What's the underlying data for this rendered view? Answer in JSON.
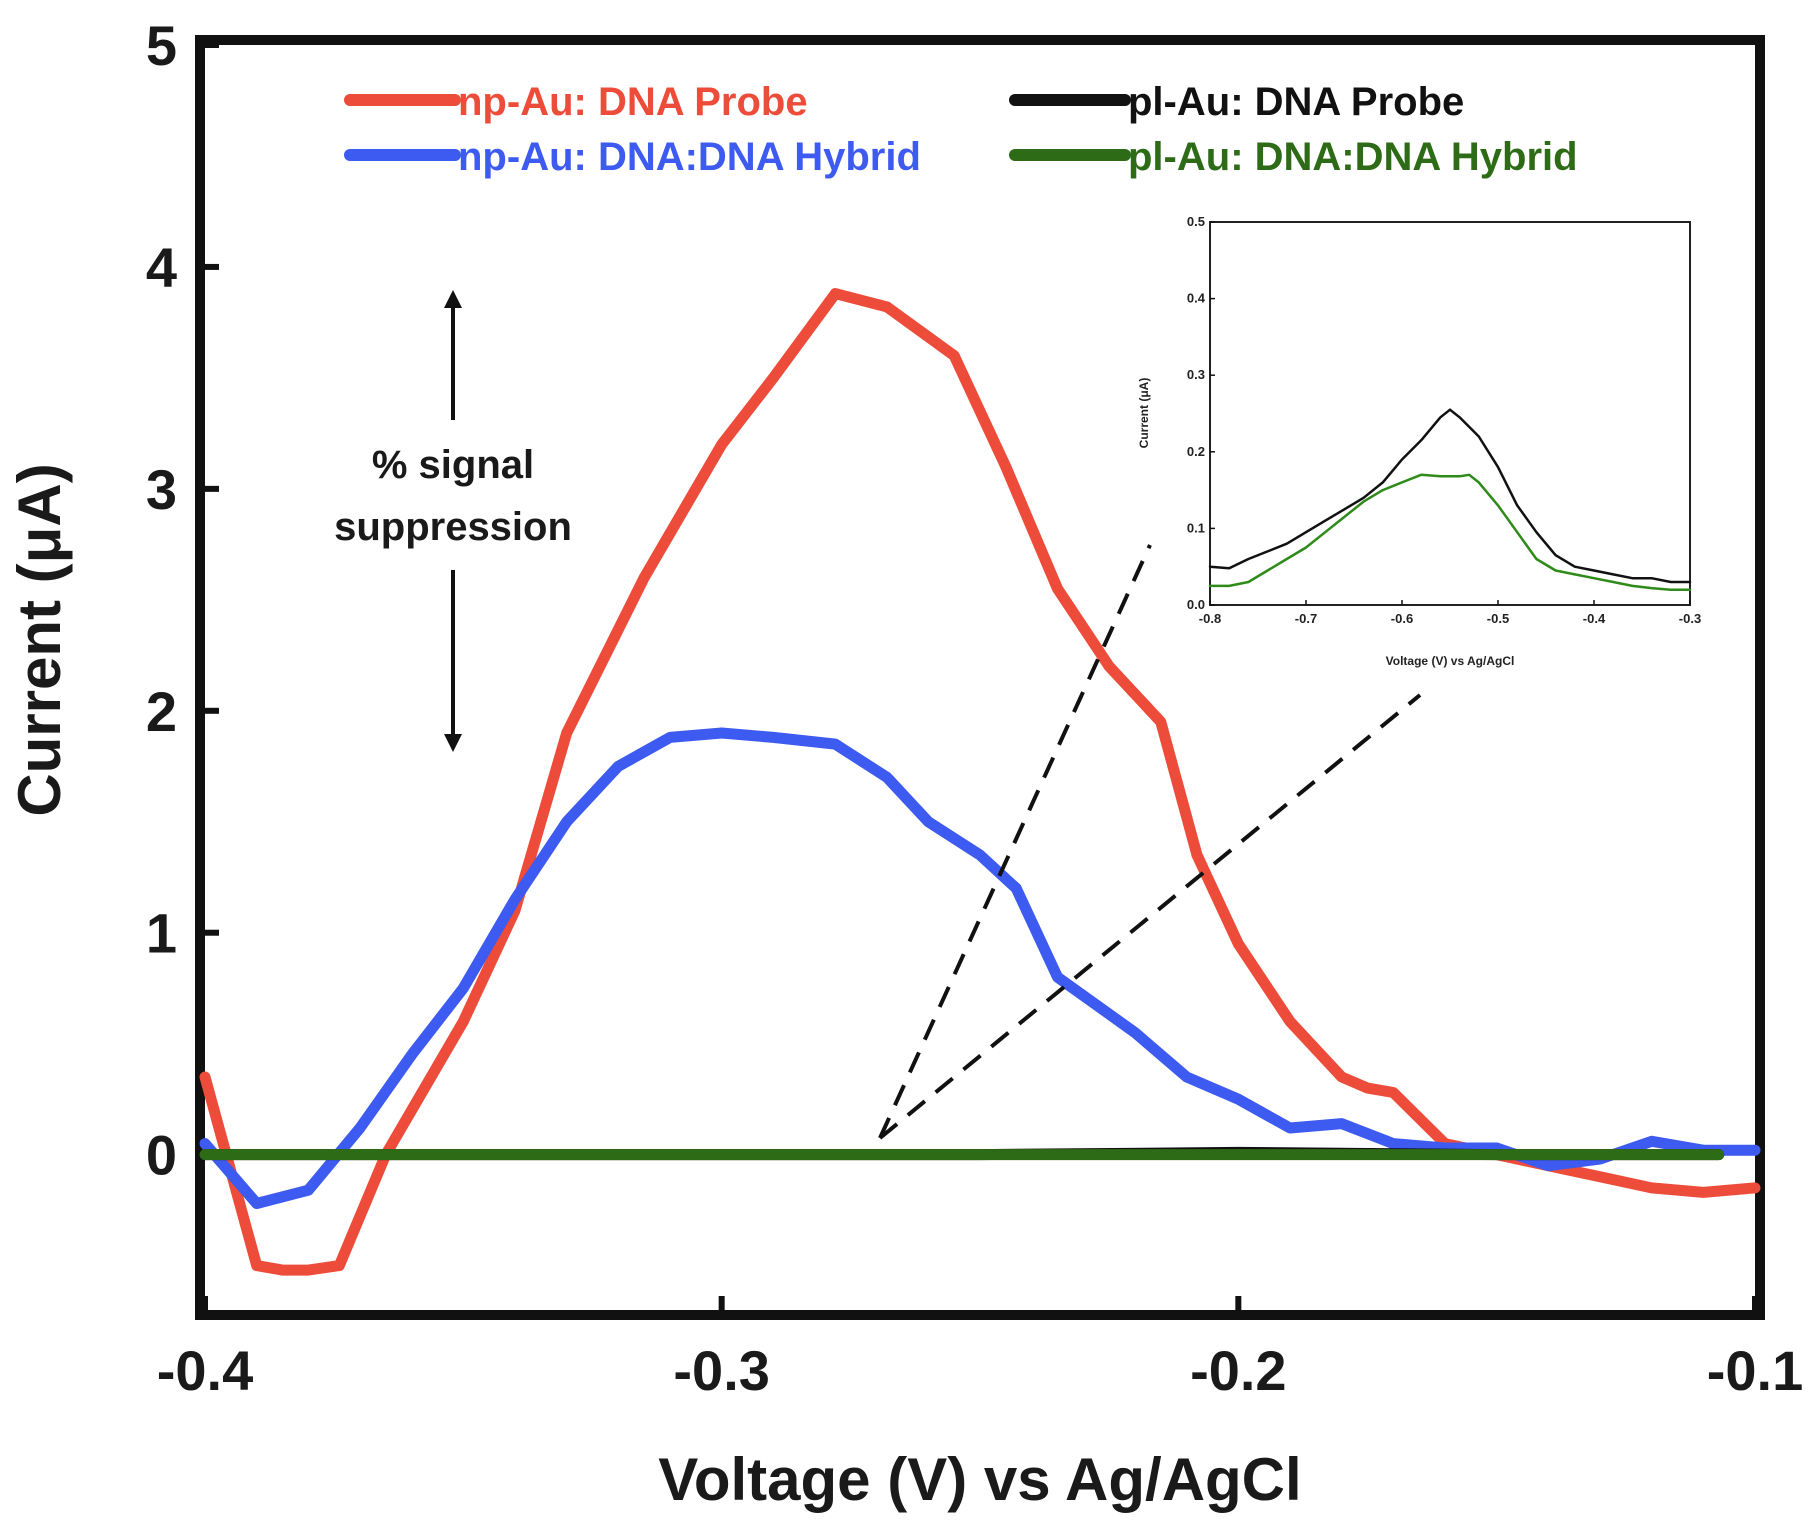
{
  "chart_data": [
    {
      "type": "line",
      "title": "",
      "xlabel": "Voltage (V) vs Ag/AgCl",
      "ylabel": "Current (μA)",
      "xlim": [
        -0.4,
        -0.1
      ],
      "ylim": [
        -0.7,
        5
      ],
      "x_ticks": [
        -0.4,
        -0.3,
        -0.2,
        -0.1
      ],
      "x_tick_labels": [
        "-0.4",
        "-0.3",
        "-0.2",
        "-0.1"
      ],
      "y_ticks": [
        0,
        1,
        2,
        3,
        4,
        5
      ],
      "y_tick_labels": [
        "0",
        "1",
        "2",
        "3",
        "4",
        "5"
      ],
      "grid": false,
      "legend_position": "top",
      "series": [
        {
          "name": "np-Au: DNA Probe",
          "color": "#ee4c3a",
          "x": [
            -0.4,
            -0.39,
            -0.385,
            -0.38,
            -0.374,
            -0.365,
            -0.35,
            -0.34,
            -0.33,
            -0.315,
            -0.3,
            -0.29,
            -0.278,
            -0.268,
            -0.255,
            -0.245,
            -0.235,
            -0.225,
            -0.215,
            -0.208,
            -0.2,
            -0.19,
            -0.18,
            -0.175,
            -0.17,
            -0.16,
            -0.15,
            -0.14,
            -0.13,
            -0.12,
            -0.11,
            -0.1
          ],
          "y": [
            0.35,
            -0.5,
            -0.52,
            -0.52,
            -0.5,
            0.0,
            0.6,
            1.1,
            1.9,
            2.6,
            3.2,
            3.5,
            3.88,
            3.82,
            3.6,
            3.1,
            2.55,
            2.2,
            1.95,
            1.35,
            0.95,
            0.6,
            0.35,
            0.3,
            0.28,
            0.05,
            0.0,
            -0.05,
            -0.1,
            -0.15,
            -0.17,
            -0.15
          ]
        },
        {
          "name": "np-Au: DNA:DNA Hybrid",
          "color": "#3d5af1",
          "x": [
            -0.4,
            -0.39,
            -0.38,
            -0.37,
            -0.36,
            -0.35,
            -0.34,
            -0.33,
            -0.32,
            -0.31,
            -0.3,
            -0.29,
            -0.278,
            -0.268,
            -0.26,
            -0.25,
            -0.243,
            -0.235,
            -0.22,
            -0.21,
            -0.2,
            -0.19,
            -0.18,
            -0.17,
            -0.16,
            -0.15,
            -0.14,
            -0.13,
            -0.12,
            -0.11,
            -0.1
          ],
          "y": [
            0.05,
            -0.22,
            -0.16,
            0.12,
            0.45,
            0.75,
            1.15,
            1.5,
            1.75,
            1.88,
            1.9,
            1.88,
            1.85,
            1.7,
            1.5,
            1.35,
            1.2,
            0.8,
            0.55,
            0.35,
            0.25,
            0.12,
            0.14,
            0.05,
            0.03,
            0.03,
            -0.05,
            -0.02,
            0.06,
            0.02,
            0.02
          ]
        },
        {
          "name": "pl-Au: DNA Probe",
          "color": "#111111",
          "x": [
            -0.4,
            -0.35,
            -0.3,
            -0.25,
            -0.2,
            -0.15,
            -0.107
          ],
          "y": [
            0.0,
            0.0,
            0.0,
            0.0,
            0.01,
            0.0,
            0.0
          ]
        },
        {
          "name": "pl-Au: DNA:DNA Hybrid",
          "color": "#2e6b16",
          "x": [
            -0.4,
            -0.35,
            -0.3,
            -0.25,
            -0.2,
            -0.15,
            -0.107
          ],
          "y": [
            0.0,
            0.0,
            0.0,
            0.0,
            0.0,
            0.0,
            0.0
          ]
        }
      ],
      "annotations": [
        {
          "text": "% signal",
          "kind": "arrow-label"
        },
        {
          "text": "suppression",
          "kind": "arrow-label"
        }
      ]
    },
    {
      "type": "line",
      "title": "",
      "xlabel": "Voltage (V) vs Ag/AgCl",
      "ylabel": "Current (μA)",
      "xlim": [
        -0.8,
        -0.3
      ],
      "ylim": [
        0.0,
        0.5
      ],
      "x_ticks": [
        -0.8,
        -0.7,
        -0.6,
        -0.5,
        -0.4,
        -0.3
      ],
      "x_tick_labels": [
        "-0.8",
        "-0.7",
        "-0.6",
        "-0.5",
        "-0.4",
        "-0.3"
      ],
      "y_ticks": [
        0.0,
        0.1,
        0.2,
        0.3,
        0.4,
        0.5
      ],
      "y_tick_labels": [
        "0.0",
        "0.1",
        "0.2",
        "0.3",
        "0.4",
        "0.5"
      ],
      "grid": false,
      "series": [
        {
          "name": "pl-Au: DNA Probe",
          "color": "#111111",
          "x": [
            -0.8,
            -0.78,
            -0.76,
            -0.74,
            -0.72,
            -0.7,
            -0.68,
            -0.66,
            -0.64,
            -0.62,
            -0.6,
            -0.58,
            -0.56,
            -0.55,
            -0.54,
            -0.52,
            -0.5,
            -0.48,
            -0.46,
            -0.44,
            -0.42,
            -0.4,
            -0.38,
            -0.36,
            -0.34,
            -0.32,
            -0.3
          ],
          "y": [
            0.05,
            0.048,
            0.06,
            0.07,
            0.08,
            0.095,
            0.11,
            0.125,
            0.14,
            0.16,
            0.19,
            0.215,
            0.245,
            0.255,
            0.245,
            0.22,
            0.18,
            0.13,
            0.095,
            0.065,
            0.05,
            0.045,
            0.04,
            0.035,
            0.035,
            0.03,
            0.03
          ]
        },
        {
          "name": "pl-Au: DNA:DNA Hybrid",
          "color": "#2e8b1a",
          "x": [
            -0.8,
            -0.78,
            -0.76,
            -0.74,
            -0.72,
            -0.7,
            -0.68,
            -0.66,
            -0.64,
            -0.62,
            -0.6,
            -0.58,
            -0.56,
            -0.54,
            -0.53,
            -0.52,
            -0.5,
            -0.48,
            -0.46,
            -0.44,
            -0.42,
            -0.4,
            -0.38,
            -0.36,
            -0.34,
            -0.32,
            -0.3
          ],
          "y": [
            0.025,
            0.025,
            0.03,
            0.045,
            0.06,
            0.075,
            0.095,
            0.115,
            0.135,
            0.15,
            0.16,
            0.17,
            0.168,
            0.168,
            0.17,
            0.16,
            0.13,
            0.095,
            0.06,
            0.045,
            0.04,
            0.035,
            0.03,
            0.025,
            0.022,
            0.02,
            0.02
          ]
        }
      ]
    }
  ]
}
